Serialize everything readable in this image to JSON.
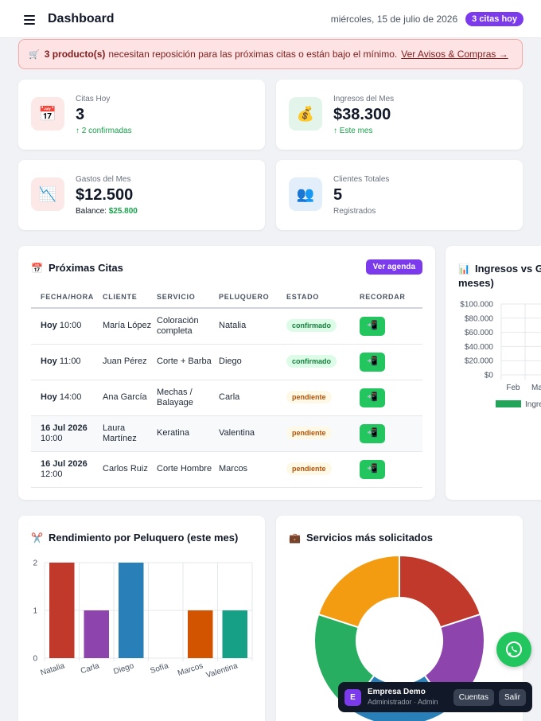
{
  "header": {
    "title": "Dashboard",
    "date": "miércoles, 15 de julio de 2026",
    "today_badge": "3 citas hoy"
  },
  "alert": {
    "icon": "🛒",
    "count": "3 producto(s)",
    "message": "necesitan reposición para las próximas citas o están bajo el mínimo.",
    "link": "Ver Avisos & Compras →"
  },
  "stats": {
    "citas": {
      "icon": "📅",
      "label": "Citas Hoy",
      "value": "3",
      "sub": "↑ 2 confirmadas"
    },
    "ingresos": {
      "icon": "💰",
      "label": "Ingresos del Mes",
      "value": "$38.300",
      "sub": "↑ Este mes"
    },
    "gastos": {
      "icon": "📉",
      "label": "Gastos del Mes",
      "value": "$12.500",
      "sub_label": "Balance:",
      "sub_value": "$25.800"
    },
    "clientes": {
      "icon": "👥",
      "label": "Clientes Totales",
      "value": "5",
      "sub": "Registrados"
    }
  },
  "appointments": {
    "icon": "📅",
    "title": "Próximas Citas",
    "agenda_button": "Ver agenda",
    "columns": [
      "FECHA/HORA",
      "CLIENTE",
      "SERVICIO",
      "PELUQUERO",
      "ESTADO",
      "RECORDAR"
    ],
    "remind_icon": "📲",
    "rows": [
      {
        "day": "Hoy",
        "time": "10:00",
        "client": "María López",
        "service": "Coloración completa",
        "stylist": "Natalia",
        "status": "confirmado"
      },
      {
        "day": "Hoy",
        "time": "11:00",
        "client": "Juan Pérez",
        "service": "Corte + Barba",
        "stylist": "Diego",
        "status": "confirmado"
      },
      {
        "day": "Hoy",
        "time": "14:00",
        "client": "Ana García",
        "service": "Mechas / Balayage",
        "stylist": "Carla",
        "status": "pendiente"
      },
      {
        "day": "16 Jul 2026",
        "time": "10:00",
        "client": "Laura Martínez",
        "service": "Keratina",
        "stylist": "Valentina",
        "status": "pendiente"
      },
      {
        "day": "16 Jul 2026",
        "time": "12:00",
        "client": "Carlos Ruiz",
        "service": "Corte Hombre",
        "stylist": "Marcos",
        "status": "pendiente"
      }
    ]
  },
  "income_chart": {
    "icon": "📊",
    "title_line1": "Ingresos vs G",
    "title_line2": "meses)"
  },
  "performance": {
    "icon": "✂️",
    "title": "Rendimiento por Peluquero (este mes)"
  },
  "services": {
    "icon": "💼",
    "title": "Servicios más solicitados"
  },
  "account": {
    "initial": "E",
    "name": "Empresa Demo",
    "role": "Administrador · Admin",
    "accounts_button": "Cuentas",
    "logout_button": "Salir"
  },
  "colors": {
    "accent": "#7c3aed",
    "success": "#22c55e",
    "alert_bg": "#fde3e3"
  },
  "chart_data": [
    {
      "type": "bar",
      "title": "Ingresos vs G",
      "categories": [
        "Feb",
        "Ma"
      ],
      "yticks": [
        "$0",
        "$20.000",
        "$40.000",
        "$60.000",
        "$80.000",
        "$100.000"
      ],
      "ylim": [
        0,
        100000
      ],
      "series": [
        {
          "name": "Ingre",
          "color": "#22a559",
          "values": [
            0,
            0
          ]
        }
      ],
      "legend": "bottom"
    },
    {
      "type": "bar",
      "title": "Rendimiento por Peluquero (este mes)",
      "categories": [
        "Natalia",
        "Carla",
        "Diego",
        "Sofía",
        "Marcos",
        "Valentina"
      ],
      "values": [
        2,
        1,
        2,
        0,
        1,
        1
      ],
      "colors": [
        "#c0392b",
        "#8e44ad",
        "#2980b9",
        "#95a5a6",
        "#d35400",
        "#16a085"
      ],
      "yticks": [
        "0",
        "1",
        "2"
      ],
      "ylim": [
        0,
        2
      ],
      "grid": true
    },
    {
      "type": "pie",
      "title": "Servicios más solicitados",
      "values": [
        1,
        1,
        1,
        1,
        1
      ],
      "colors": [
        "#c0392b",
        "#8e44ad",
        "#2980b9",
        "#27ae60",
        "#f39c12"
      ]
    }
  ]
}
